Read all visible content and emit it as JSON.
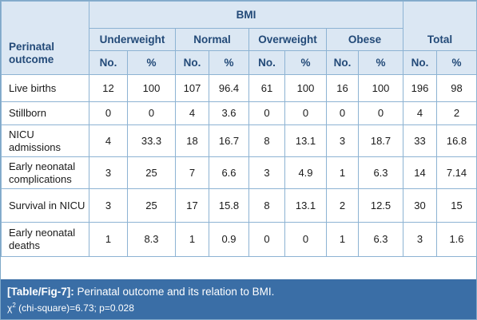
{
  "table": {
    "header": {
      "outcome_label": "Perinatal outcome",
      "group_label": "BMI",
      "total_label": "Total",
      "categories": [
        "Underweight",
        "Normal",
        "Overweight",
        "Obese"
      ],
      "no_label": "No.",
      "pct_label": "%"
    },
    "rows": [
      {
        "label": "Live births",
        "cells": [
          "12",
          "100",
          "107",
          "96.4",
          "61",
          "100",
          "16",
          "100",
          "196",
          "98"
        ]
      },
      {
        "label": "Stillborn",
        "cells": [
          "0",
          "0",
          "4",
          "3.6",
          "0",
          "0",
          "0",
          "0",
          "4",
          "2"
        ]
      },
      {
        "label": "NICU admissions",
        "cells": [
          "4",
          "33.3",
          "18",
          "16.7",
          "8",
          "13.1",
          "3",
          "18.7",
          "33",
          "16.8"
        ]
      },
      {
        "label": "Early neonatal complications",
        "cells": [
          "3",
          "25",
          "7",
          "6.6",
          "3",
          "4.9",
          "1",
          "6.3",
          "14",
          "7.14"
        ]
      },
      {
        "label": "Survival in NICU",
        "cells": [
          "3",
          "25",
          "17",
          "15.8",
          "8",
          "13.1",
          "2",
          "12.5",
          "30",
          "15"
        ]
      },
      {
        "label": "Early neonatal deaths",
        "cells": [
          "1",
          "8.3",
          "1",
          "0.9",
          "0",
          "0",
          "1",
          "6.3",
          "3",
          "1.6"
        ]
      }
    ]
  },
  "caption": {
    "tag": "[Table/Fig-7]:",
    "title": "Perinatal outcome and its relation to BMI.",
    "stat_symbol": "χ",
    "stat_superscript": "2",
    "stat_text": "(chi-square)=6.73; p=0.028"
  },
  "colors": {
    "header_fill": "#dbe7f3",
    "header_text": "#234a78",
    "border": "#8db3d3",
    "caption_fill": "#3a6ea6",
    "caption_text": "#ffffff"
  }
}
